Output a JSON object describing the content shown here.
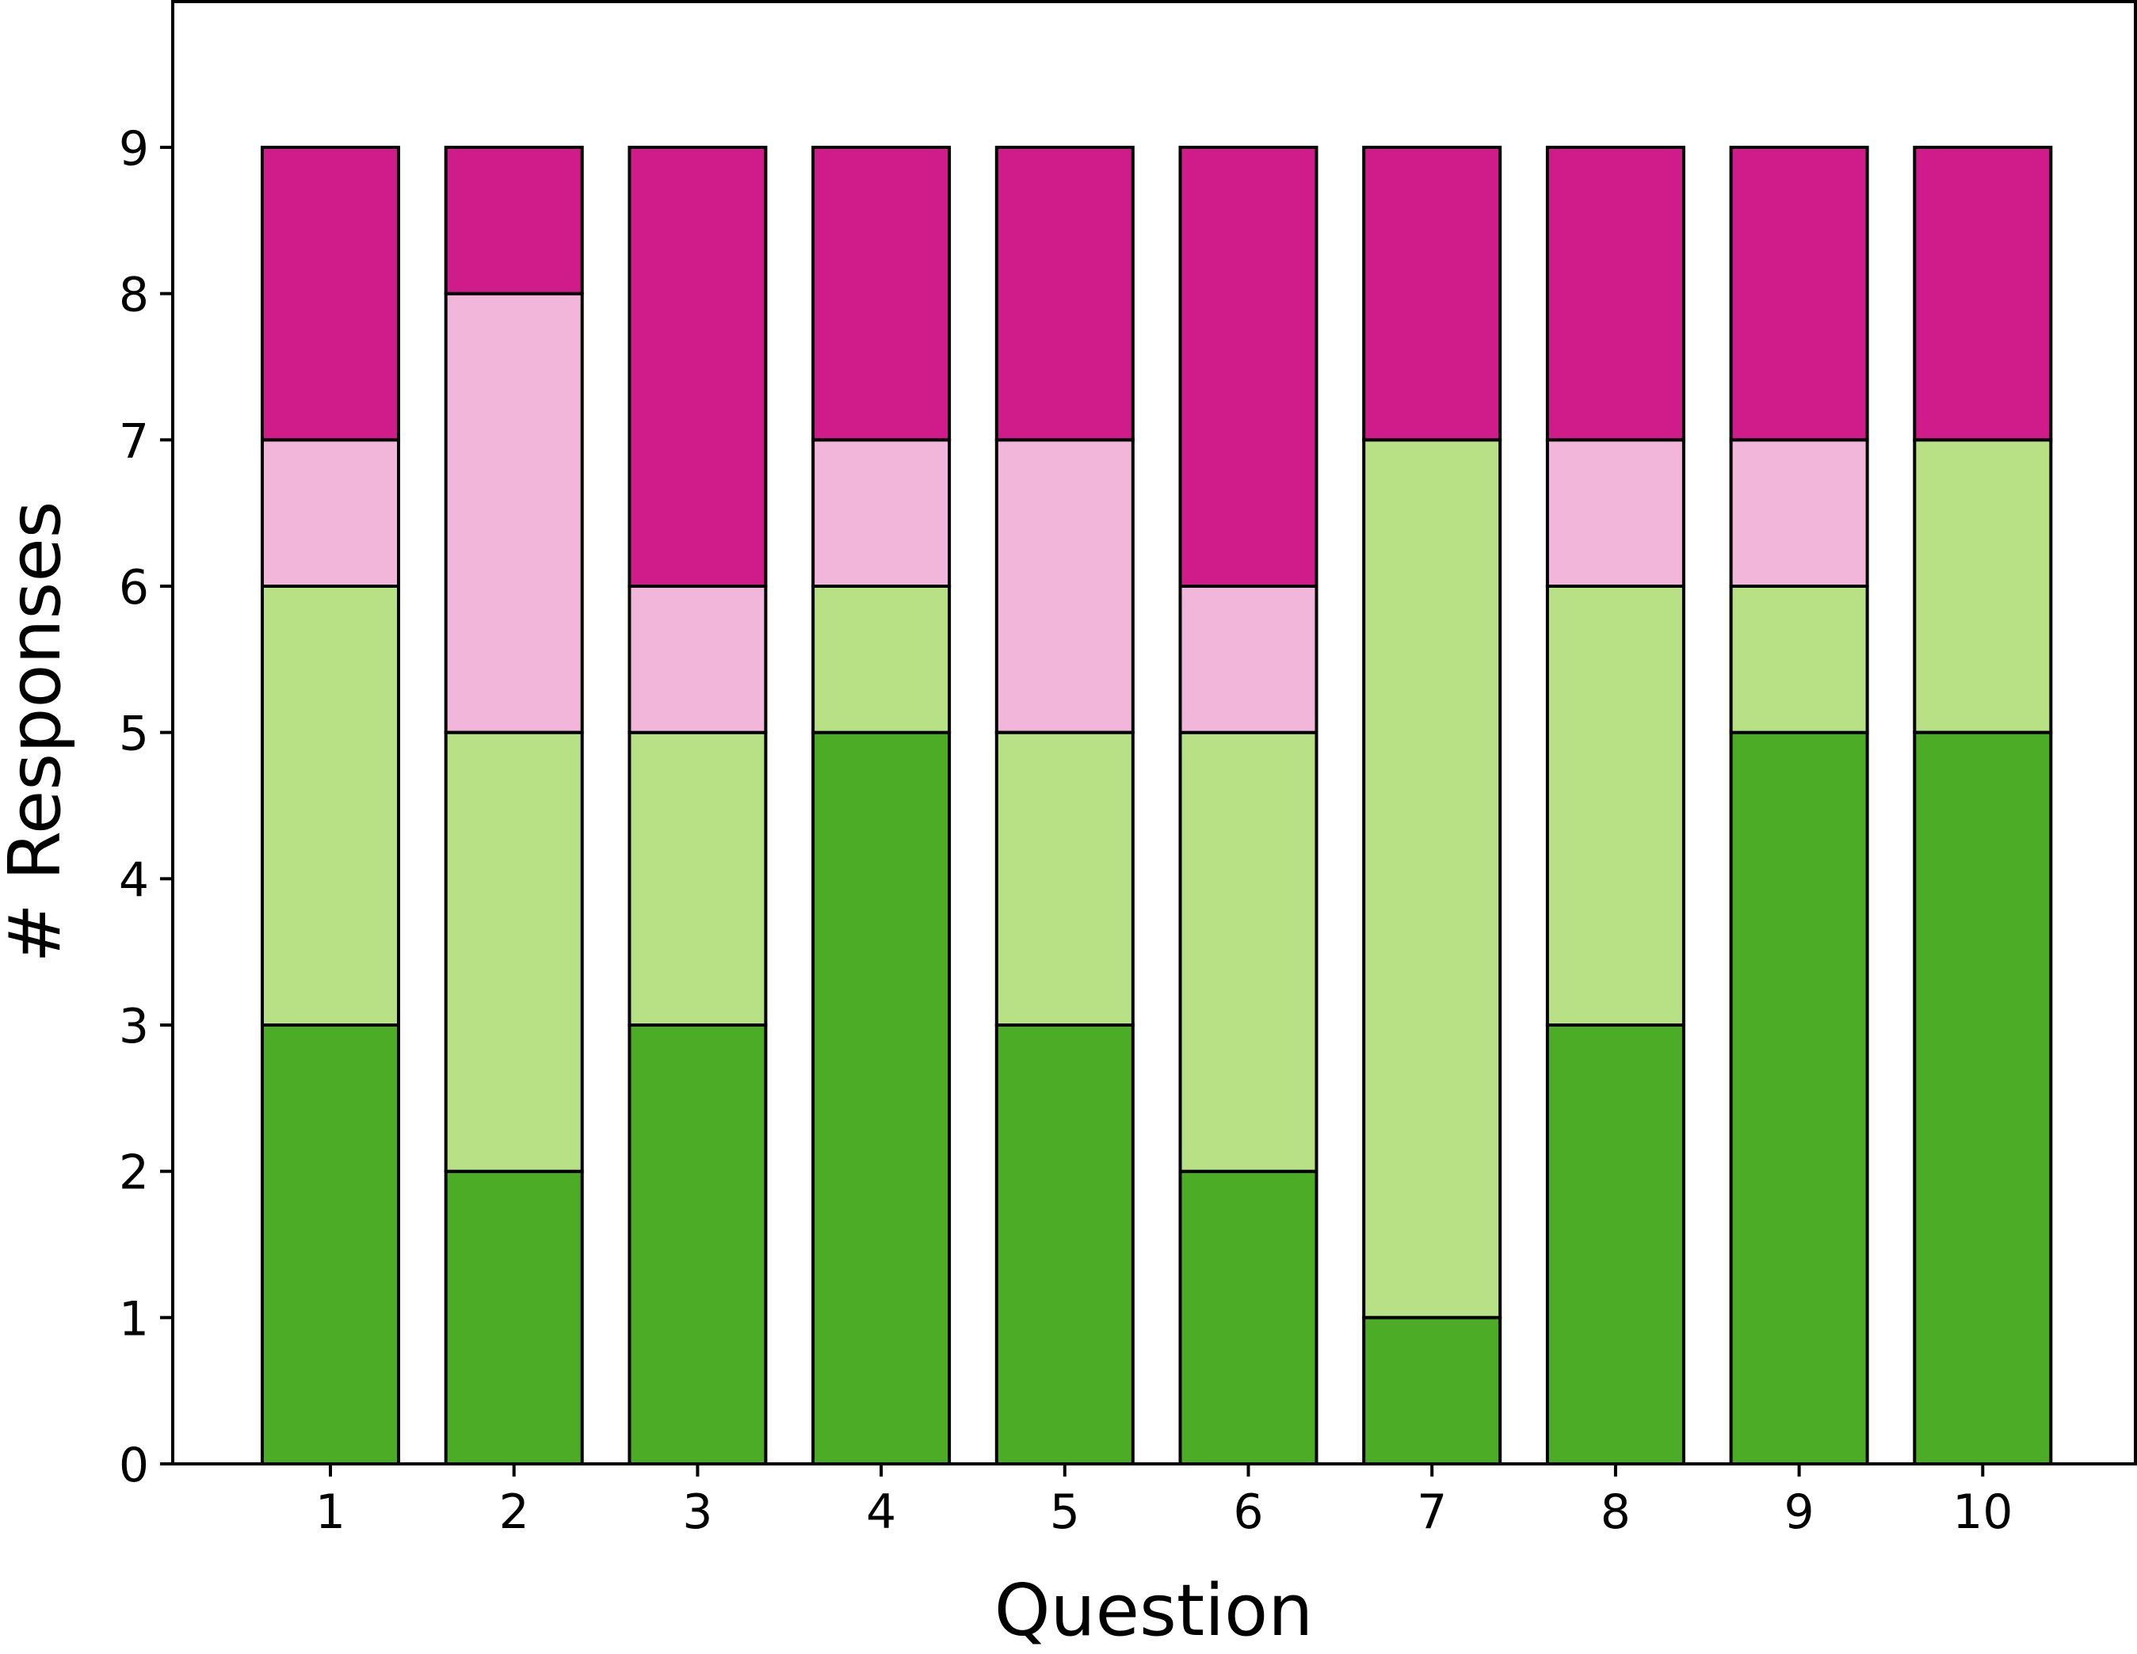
{
  "chart_data": {
    "type": "bar",
    "stacked": true,
    "categories": [
      "1",
      "2",
      "3",
      "4",
      "5",
      "6",
      "7",
      "8",
      "9",
      "10"
    ],
    "series": [
      {
        "color": "#4dac26",
        "values": [
          3,
          2,
          3,
          5,
          3,
          2,
          1,
          3,
          5,
          5
        ]
      },
      {
        "color": "#b8e186",
        "values": [
          3,
          3,
          2,
          1,
          2,
          3,
          6,
          3,
          1,
          2
        ]
      },
      {
        "color": "#f1b6da",
        "values": [
          1,
          3,
          1,
          1,
          2,
          1,
          0,
          1,
          1,
          0
        ]
      },
      {
        "color": "#d01c8b",
        "values": [
          2,
          1,
          3,
          2,
          2,
          3,
          2,
          2,
          2,
          2
        ]
      }
    ],
    "xlabel": "Question",
    "ylabel": "# Responses",
    "ylim": [
      0,
      10
    ],
    "yticks": [
      "0",
      "1",
      "2",
      "3",
      "4",
      "5",
      "6",
      "7",
      "8",
      "9"
    ],
    "grid": false,
    "legend": "none"
  }
}
